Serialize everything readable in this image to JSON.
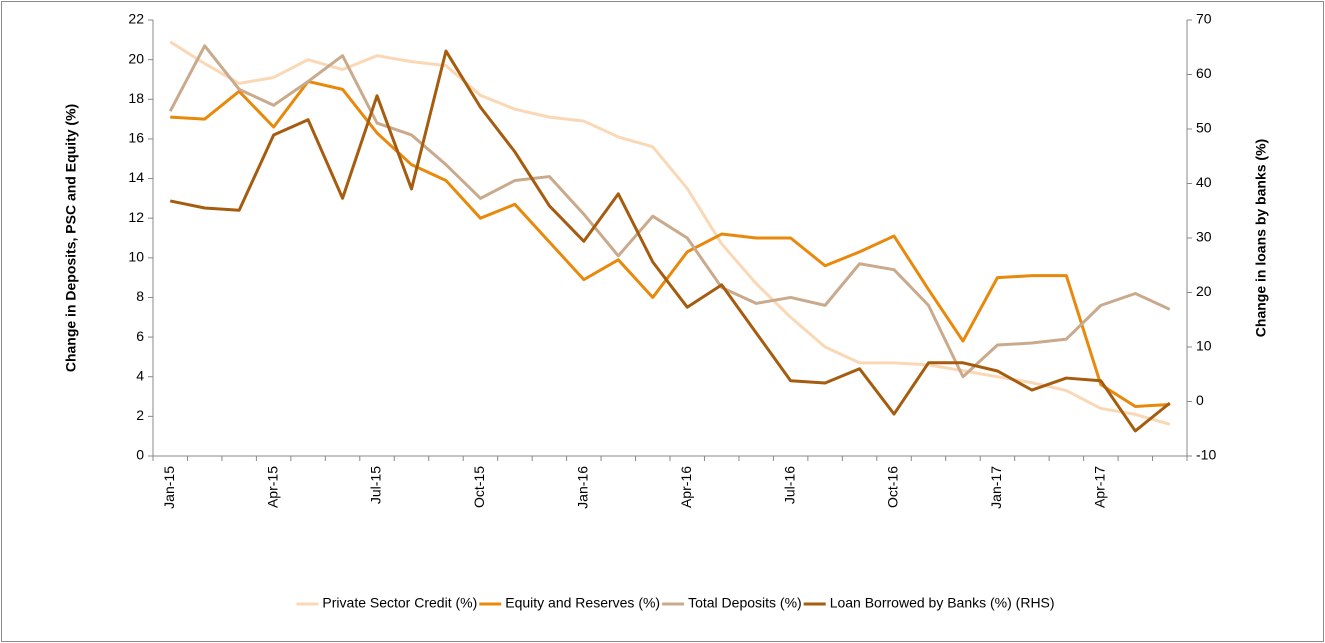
{
  "chart_data": {
    "type": "line",
    "y_label": "Change in Deposits, PSC and Equity (%)",
    "y2_label": "Change in loans by banks (%)",
    "categories": [
      "Jan-15",
      null,
      null,
      "Apr-15",
      null,
      null,
      "Jul-15",
      null,
      null,
      "Oct-15",
      null,
      null,
      "Jan-16",
      null,
      null,
      "Apr-16",
      null,
      null,
      "Jul-16",
      null,
      null,
      "Oct-16",
      null,
      null,
      "Jan-17",
      null,
      null,
      "Apr-17",
      null,
      null
    ],
    "ylim": [
      0,
      22
    ],
    "yticks": [
      0,
      2,
      4,
      6,
      8,
      10,
      12,
      14,
      16,
      18,
      20,
      22
    ],
    "y2lim": [
      -10,
      70
    ],
    "y2ticks": [
      -10,
      0,
      10,
      20,
      30,
      40,
      50,
      60,
      70
    ],
    "legend": "bottom",
    "series": [
      {
        "name": "Private Sector Credit (%)",
        "color": "#fad8b6",
        "values": [
          20.9,
          19.8,
          18.8,
          19.1,
          20.0,
          19.5,
          20.2,
          19.9,
          19.7,
          18.2,
          17.5,
          17.1,
          16.9,
          16.1,
          15.6,
          13.5,
          10.7,
          8.7,
          7.0,
          5.5,
          4.7,
          4.7,
          4.6,
          4.3,
          4.0,
          3.7,
          3.3,
          2.4,
          2.1,
          1.6
        ]
      },
      {
        "name": "Equity and Reserves (%)",
        "color": "#e8890c",
        "values": [
          17.1,
          17.0,
          18.4,
          16.6,
          18.9,
          18.5,
          16.3,
          14.7,
          13.9,
          12.0,
          12.7,
          10.8,
          8.9,
          9.9,
          8.0,
          10.3,
          11.2,
          11.0,
          11.0,
          9.6,
          10.3,
          11.1,
          8.4,
          5.8,
          9.0,
          9.1,
          9.1,
          3.6,
          2.5,
          2.6
        ]
      },
      {
        "name": "Total Deposits (%)",
        "color": "#c9aa8c",
        "values": [
          17.4,
          20.7,
          18.5,
          17.7,
          18.9,
          20.2,
          16.8,
          16.2,
          14.7,
          13.0,
          13.9,
          14.1,
          12.2,
          10.1,
          12.1,
          11.0,
          8.5,
          7.7,
          8.0,
          7.6,
          9.7,
          9.4,
          7.6,
          4.0,
          5.6,
          5.7,
          5.9,
          7.6,
          8.2,
          7.4
        ]
      },
      {
        "name": "Loan Borrowed by Banks (%) (RHS)",
        "color": "#a65c0e",
        "axis": "y2",
        "values": [
          36.8,
          35.5,
          35.1,
          48.9,
          51.7,
          37.3,
          56.1,
          39.0,
          64.3,
          54.0,
          45.8,
          35.9,
          29.4,
          38.1,
          25.6,
          17.3,
          21.4,
          12.6,
          3.8,
          3.4,
          6.0,
          -2.3,
          7.1,
          7.1,
          5.6,
          2.1,
          4.3,
          3.8,
          -5.4,
          -0.3
        ]
      }
    ]
  }
}
